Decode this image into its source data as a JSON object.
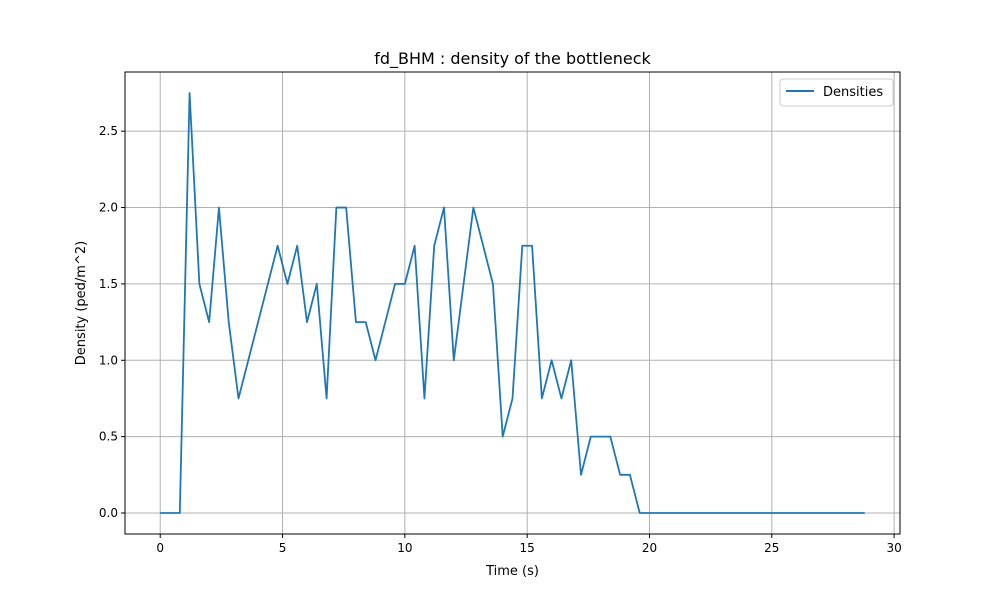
{
  "chart_data": {
    "type": "line",
    "title": "fd_BHM : density of the bottleneck",
    "xlabel": "Time (s)",
    "ylabel": "Density (ped/m^2)",
    "xlim": [
      -1.44,
      30.24
    ],
    "ylim": [
      -0.1375,
      2.8875
    ],
    "xticks": [
      0,
      5,
      10,
      15,
      20,
      25,
      30
    ],
    "yticks": [
      0.0,
      0.5,
      1.0,
      1.5,
      2.0,
      2.5
    ],
    "xtick_labels": [
      "0",
      "5",
      "10",
      "15",
      "20",
      "25",
      "30"
    ],
    "ytick_labels": [
      "0.0",
      "0.5",
      "1.0",
      "1.5",
      "2.0",
      "2.5"
    ],
    "grid": true,
    "legend_position": "top-right",
    "series": [
      {
        "name": "Densities",
        "color": "#1f77b4",
        "x": [
          0.0,
          0.8,
          1.2,
          1.6,
          2.0,
          2.4,
          2.8,
          3.2,
          4.8,
          5.2,
          5.6,
          6.0,
          6.4,
          6.8,
          7.2,
          7.6,
          8.0,
          8.4,
          8.8,
          9.6,
          10.0,
          10.4,
          10.8,
          11.2,
          11.6,
          12.0,
          12.8,
          13.6,
          14.0,
          14.4,
          14.8,
          15.2,
          15.6,
          16.0,
          16.4,
          16.8,
          17.2,
          17.6,
          18.4,
          18.8,
          19.2,
          19.6,
          28.8
        ],
        "y": [
          0.0,
          0.0,
          2.75,
          1.5,
          1.25,
          2.0,
          1.25,
          0.75,
          1.75,
          1.5,
          1.75,
          1.25,
          1.5,
          0.75,
          2.0,
          2.0,
          1.25,
          1.25,
          1.0,
          1.5,
          1.5,
          1.75,
          0.75,
          1.75,
          2.0,
          1.0,
          2.0,
          1.5,
          0.5,
          0.75,
          1.75,
          1.75,
          0.75,
          1.0,
          0.75,
          1.0,
          0.25,
          0.5,
          0.5,
          0.25,
          0.25,
          0.0,
          0.0
        ]
      }
    ]
  }
}
